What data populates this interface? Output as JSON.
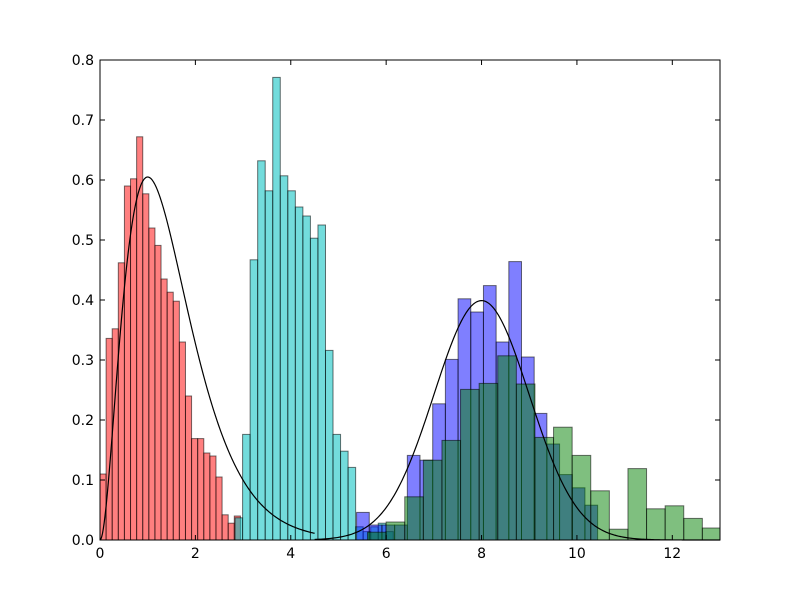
{
  "chart_data": {
    "type": "bar",
    "title": "",
    "xlabel": "",
    "ylabel": "",
    "xlim": [
      0,
      13
    ],
    "ylim": [
      0,
      0.8
    ],
    "xticks": [
      0,
      2,
      4,
      6,
      8,
      10,
      12
    ],
    "yticks": [
      0.0,
      0.1,
      0.2,
      0.3,
      0.4,
      0.5,
      0.6,
      0.7,
      0.8
    ],
    "xtick_labels": [
      "0",
      "2",
      "4",
      "6",
      "8",
      "10",
      "12"
    ],
    "ytick_labels": [
      "0.0",
      "0.1",
      "0.2",
      "0.3",
      "0.4",
      "0.5",
      "0.6",
      "0.7",
      "0.8"
    ],
    "grid": false,
    "legend": "none",
    "series": [
      {
        "kind": "histogram",
        "color": "#ff0000",
        "alpha": 0.5,
        "bin_edges": [
          0.0,
          0.128,
          0.256,
          0.384,
          0.512,
          0.64,
          0.768,
          0.896,
          1.024,
          1.152,
          1.28,
          1.408,
          1.536,
          1.664,
          1.792,
          1.92,
          2.048,
          2.176,
          2.304,
          2.432,
          2.56,
          2.688,
          2.816,
          2.944
        ],
        "values": [
          0.11,
          0.336,
          0.352,
          0.462,
          0.59,
          0.602,
          0.672,
          0.577,
          0.52,
          0.491,
          0.435,
          0.413,
          0.398,
          0.33,
          0.24,
          0.169,
          0.169,
          0.145,
          0.14,
          0.105,
          0.042,
          0.028,
          0.04
        ]
      },
      {
        "kind": "histogram",
        "color": "#00c0c0",
        "alpha": 0.55,
        "bin_edges": [
          2.832,
          2.99,
          3.148,
          3.306,
          3.464,
          3.622,
          3.78,
          3.938,
          4.096,
          4.254,
          4.412,
          4.57,
          4.728,
          4.886,
          5.044,
          5.202,
          5.36,
          5.518,
          5.676,
          5.834,
          5.992,
          6.15
        ],
        "values": [
          0.037,
          0.176,
          0.467,
          0.632,
          0.582,
          0.771,
          0.607,
          0.582,
          0.555,
          0.54,
          0.503,
          0.525,
          0.316,
          0.176,
          0.148,
          0.121,
          0.022,
          0.014,
          0.022,
          0.028,
          0.014
        ]
      },
      {
        "kind": "histogram",
        "color": "#0000ff",
        "alpha": 0.5,
        "bin_edges": [
          5.38,
          5.646,
          5.912,
          6.178,
          6.444,
          6.71,
          6.976,
          7.242,
          7.508,
          7.774,
          8.04,
          8.306,
          8.572,
          8.838,
          9.104,
          9.37,
          9.636,
          9.902,
          10.168,
          10.434
        ],
        "values": [
          0.046,
          0.025,
          0.025,
          0.025,
          0.141,
          0.133,
          0.227,
          0.301,
          0.402,
          0.38,
          0.424,
          0.33,
          0.464,
          0.305,
          0.211,
          0.16,
          0.109,
          0.087,
          0.058
        ]
      },
      {
        "kind": "histogram",
        "color": "#008000",
        "alpha": 0.5,
        "bin_edges": [
          5.61,
          6.0,
          6.39,
          6.78,
          7.17,
          7.56,
          7.95,
          8.34,
          8.73,
          9.12,
          9.51,
          9.9,
          10.29,
          10.68,
          11.07,
          11.46,
          11.85,
          12.24,
          12.63,
          13.02
        ],
        "values": [
          0.013,
          0.03,
          0.072,
          0.133,
          0.166,
          0.251,
          0.261,
          0.307,
          0.26,
          0.171,
          0.188,
          0.141,
          0.082,
          0.018,
          0.119,
          0.052,
          0.057,
          0.036,
          0.02
        ]
      }
    ],
    "curves": [
      {
        "kind": "fit-curve",
        "color": "#000000",
        "shape": "lognormal-like",
        "peak_x": 1.0,
        "peak_y": 0.605,
        "x_start": 0.0,
        "x_end": 4.5
      },
      {
        "kind": "fit-curve",
        "color": "#000000",
        "shape": "normal",
        "mean": 8.0,
        "peak_y": 0.399,
        "x_start": 4.5,
        "x_end": 13.0
      }
    ]
  }
}
